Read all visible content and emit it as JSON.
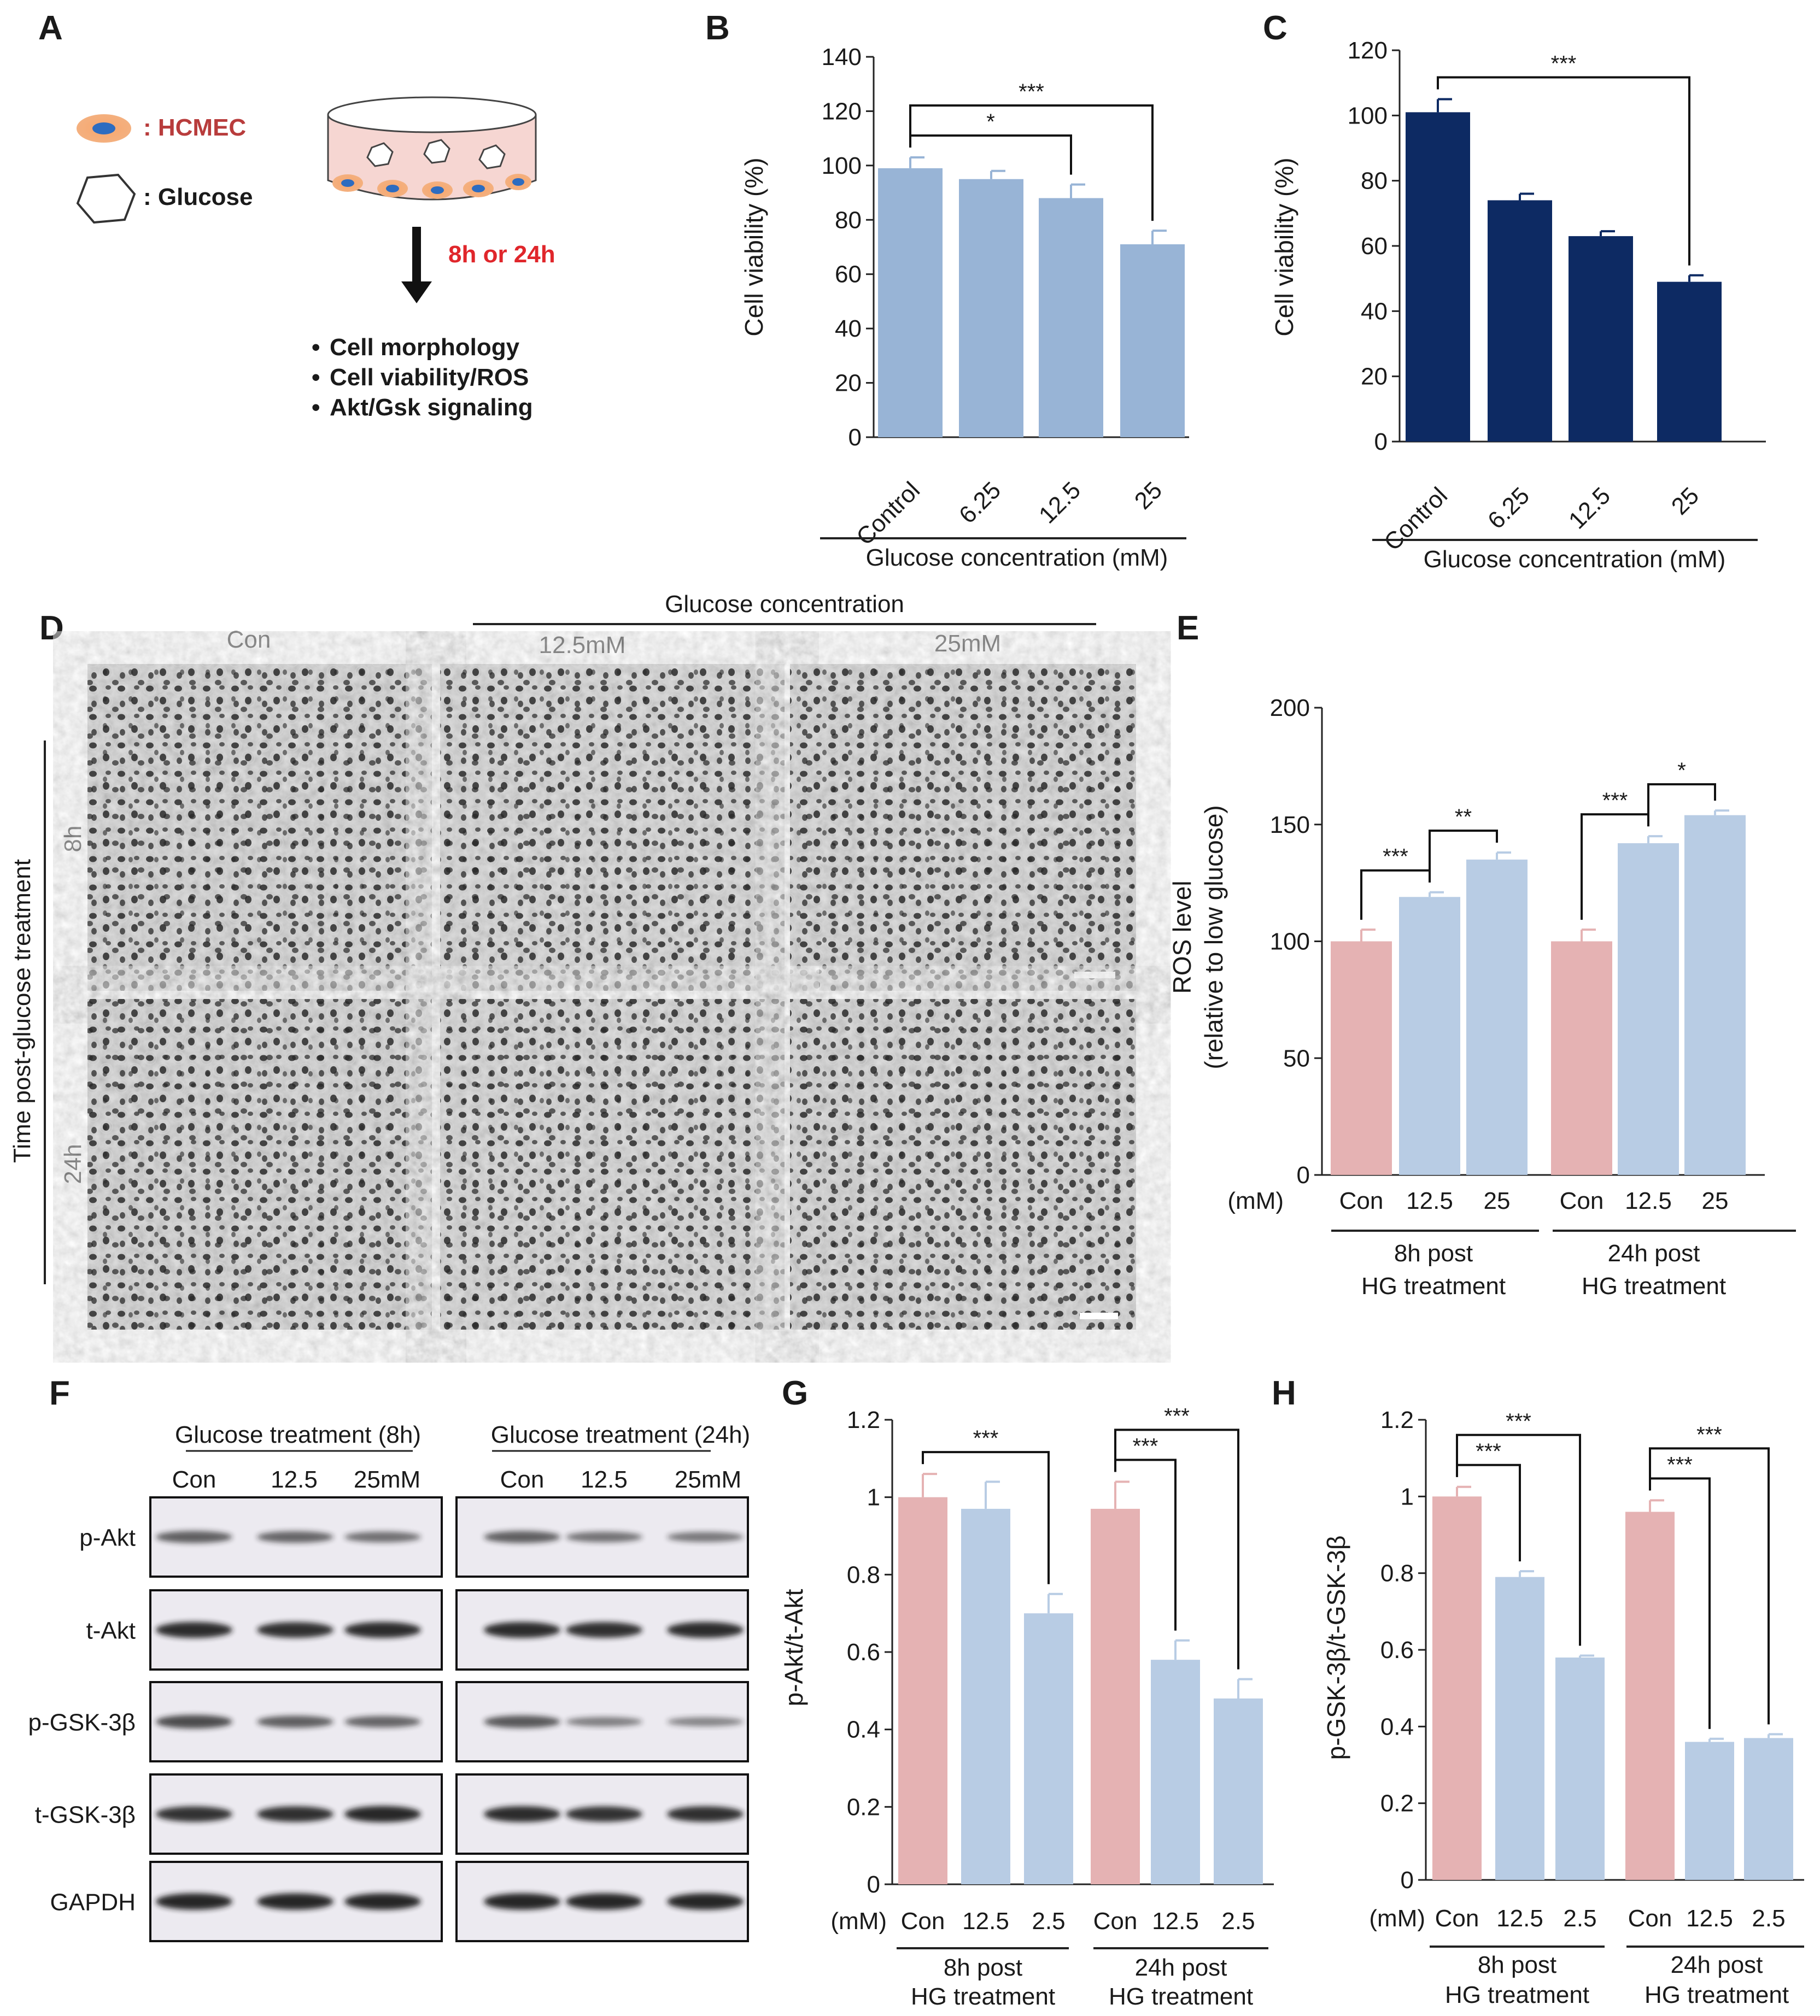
{
  "panels": {
    "A": {
      "label": "A",
      "legend": [
        {
          "icon": "hcmec-cell-icon",
          "text": ": HCMEC",
          "color": "#b83c3c"
        },
        {
          "icon": "glucose-hexagon-icon",
          "text": ": Glucose",
          "color": "#222222"
        }
      ],
      "time": "8h or 24h",
      "time_color": "#e0262b",
      "bullets": [
        "Cell morphology",
        "Cell viability/ROS",
        "Akt/Gsk signaling"
      ]
    },
    "B": {
      "label": "B",
      "group_label": "Glucose  concentration  (mM)"
    },
    "C": {
      "label": "C",
      "group_label": "Glucose  concentration  (mM)"
    },
    "D": {
      "label": "D",
      "top_label": "Glucose concentration",
      "cols": [
        "Con",
        "12.5mM",
        "25mM"
      ],
      "rows": [
        "8h",
        "24h"
      ],
      "side_label": "Time post-glucose treatment"
    },
    "E": {
      "label": "E",
      "unit": "(mM)",
      "groups": [
        "8h post",
        "HG treatment",
        "24h post",
        "HG treatment"
      ]
    },
    "F": {
      "label": "F",
      "headers": [
        "Glucose  treatment  (8h)",
        "Glucose  treatment  (24h)"
      ],
      "lanes": [
        "Con",
        "12.5",
        "25mM"
      ],
      "bands": [
        "p-Akt",
        "t-Akt",
        "p-GSK-3β",
        "t-GSK-3β",
        "GAPDH"
      ]
    },
    "G": {
      "label": "G",
      "unit": "(mM)",
      "groups": [
        "8h post",
        "HG treatment",
        "24h post",
        "HG treatment"
      ]
    },
    "H": {
      "label": "H",
      "unit": "(mM)",
      "groups": [
        "8h post",
        "HG treatment",
        "24h post",
        "HG treatment"
      ]
    }
  },
  "colors": {
    "light_blue": "#98b4d6",
    "navy": "#0d2a63",
    "pink": "#e5b2b3",
    "alt_blue": "#b8cce4"
  },
  "chart_data": [
    {
      "id": "B",
      "type": "bar",
      "title": "",
      "categories": [
        "Control",
        "6.25",
        "12.5",
        "25"
      ],
      "values": [
        99,
        95,
        88,
        71
      ],
      "errors": [
        4,
        3,
        5,
        5
      ],
      "ylabel": "Cell viability (%)",
      "xlabel": "Glucose concentration (mM)",
      "ylim": [
        0,
        140
      ],
      "yticks": [
        0,
        20,
        40,
        60,
        80,
        100,
        120,
        140
      ],
      "colors": [
        "#98b4d6",
        "#98b4d6",
        "#98b4d6",
        "#98b4d6"
      ],
      "significance": [
        {
          "from": 0,
          "to": 2,
          "label": "*"
        },
        {
          "from": 0,
          "to": 3,
          "label": "***"
        }
      ]
    },
    {
      "id": "C",
      "type": "bar",
      "title": "",
      "categories": [
        "Control",
        "6.25",
        "12.5",
        "25"
      ],
      "values": [
        101,
        74,
        63,
        49
      ],
      "errors": [
        4,
        2,
        1.5,
        2
      ],
      "ylabel": "Cell viability (%)",
      "xlabel": "Glucose concentration (mM)",
      "ylim": [
        0,
        120
      ],
      "yticks": [
        0,
        20,
        40,
        60,
        80,
        100,
        120
      ],
      "colors": [
        "#0d2a63",
        "#0d2a63",
        "#0d2a63",
        "#0d2a63"
      ],
      "significance": [
        {
          "from": 0,
          "to": 3,
          "label": "***"
        }
      ]
    },
    {
      "id": "E",
      "type": "bar",
      "title": "",
      "categories": [
        "Con",
        "12.5",
        "25",
        "Con",
        "12.5",
        "25"
      ],
      "values": [
        100,
        119,
        135,
        100,
        142,
        154
      ],
      "errors": [
        5,
        2,
        3,
        5,
        3,
        2
      ],
      "ylabel": [
        "ROS level",
        "(relative to low glucose)"
      ],
      "ylim": [
        0,
        200
      ],
      "yticks": [
        0,
        50,
        100,
        150,
        200
      ],
      "colors": [
        "#e5b2b3",
        "#b8cce4",
        "#b8cce4",
        "#e5b2b3",
        "#b8cce4",
        "#b8cce4"
      ],
      "significance": [
        {
          "from": 0,
          "to": 1,
          "label": "***"
        },
        {
          "from": 1,
          "to": 2,
          "label": "**"
        },
        {
          "from": 3,
          "to": 4,
          "label": "***"
        },
        {
          "from": 4,
          "to": 5,
          "label": "*"
        }
      ]
    },
    {
      "id": "G",
      "type": "bar",
      "title": "",
      "categories": [
        "Con",
        "12.5",
        "2.5",
        "Con",
        "12.5",
        "2.5"
      ],
      "values": [
        1.0,
        0.97,
        0.7,
        0.97,
        0.58,
        0.48
      ],
      "errors": [
        0.06,
        0.07,
        0.05,
        0.07,
        0.05,
        0.05
      ],
      "ylabel": "p-Akt/t-Akt",
      "ylim": [
        0,
        1.2
      ],
      "yticks": [
        "0",
        "0.2",
        "0.4",
        "0.6",
        "0.8",
        "1",
        "1.2"
      ],
      "colors": [
        "#e5b2b3",
        "#b8cce4",
        "#b8cce4",
        "#e5b2b3",
        "#b8cce4",
        "#b8cce4"
      ],
      "significance": [
        {
          "from": 0,
          "to": 2,
          "label": "***"
        },
        {
          "from": 3,
          "to": 4,
          "label": "***"
        },
        {
          "from": 3,
          "to": 5,
          "label": "***"
        }
      ]
    },
    {
      "id": "H",
      "type": "bar",
      "title": "",
      "categories": [
        "Con",
        "12.5",
        "2.5",
        "Con",
        "12.5",
        "2.5"
      ],
      "values": [
        1.0,
        0.79,
        0.58,
        0.96,
        0.36,
        0.37
      ],
      "errors": [
        0.025,
        0.015,
        0.005,
        0.03,
        0.008,
        0.01
      ],
      "ylabel": "p-GSK-3β/t-GSK-3β",
      "ylim": [
        0,
        1.2
      ],
      "yticks": [
        "0",
        "0.2",
        "0.4",
        "0.6",
        "0.8",
        "1",
        "1.2"
      ],
      "colors": [
        "#e5b2b3",
        "#b8cce4",
        "#b8cce4",
        "#e5b2b3",
        "#b8cce4",
        "#b8cce4"
      ],
      "significance": [
        {
          "from": 0,
          "to": 1,
          "label": "***"
        },
        {
          "from": 0,
          "to": 2,
          "label": "***"
        },
        {
          "from": 3,
          "to": 4,
          "label": "***"
        },
        {
          "from": 3,
          "to": 5,
          "label": "***"
        }
      ]
    }
  ]
}
